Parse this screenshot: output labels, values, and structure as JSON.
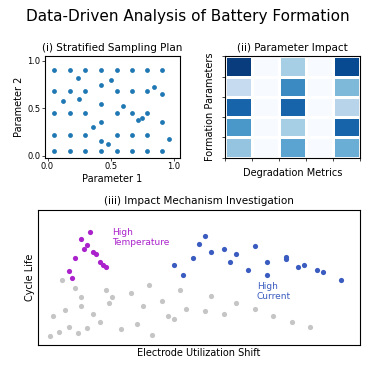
{
  "title": "Data-Driven Analysis of Battery Formation",
  "chart_data": [
    {
      "type": "scatter",
      "title": "(i) Stratified Sampling Plan",
      "x_label": "Parameter 1",
      "y_label": "Parameter 2",
      "x": [
        0.05,
        0.05,
        0.05,
        0.05,
        0.05,
        0.18,
        0.18,
        0.18,
        0.18,
        0.18,
        0.3,
        0.3,
        0.3,
        0.3,
        0.3,
        0.42,
        0.42,
        0.42,
        0.42,
        0.42,
        0.42,
        0.55,
        0.55,
        0.55,
        0.55,
        0.55,
        0.67,
        0.67,
        0.67,
        0.67,
        0.67,
        0.79,
        0.79,
        0.79,
        0.79,
        0.79,
        0.91,
        0.91,
        0.91,
        0.91,
        0.12,
        0.24,
        0.36,
        0.48,
        0.6,
        0.72,
        0.84,
        0.96,
        0.25,
        0.5,
        0.75
      ],
      "values": [
        0.05,
        0.22,
        0.45,
        0.68,
        0.9,
        0.05,
        0.22,
        0.45,
        0.68,
        0.9,
        0.05,
        0.22,
        0.45,
        0.68,
        0.9,
        0.05,
        0.15,
        0.35,
        0.55,
        0.75,
        0.9,
        0.05,
        0.22,
        0.45,
        0.68,
        0.9,
        0.05,
        0.22,
        0.45,
        0.68,
        0.9,
        0.05,
        0.22,
        0.45,
        0.68,
        0.9,
        0.05,
        0.35,
        0.65,
        0.9,
        0.58,
        0.82,
        0.3,
        0.12,
        0.52,
        0.38,
        0.72,
        0.18,
        0.6,
        0.8,
        0.4
      ],
      "xlim": [
        -0.02,
        1.05
      ],
      "ylim": [
        -0.02,
        1.05
      ],
      "xticks": [
        0.0,
        0.5,
        1.0
      ],
      "yticks": [
        0.0,
        0.5,
        1.0
      ]
    },
    {
      "type": "heatmap",
      "title": "(ii) Parameter Impact",
      "x_label": "Degradation Metrics",
      "y_label": "Formation Parameters",
      "cells": [
        [
          0.95,
          0.0,
          0.35,
          0.0,
          0.9
        ],
        [
          0.25,
          0.0,
          0.65,
          0.0,
          0.45
        ],
        [
          0.8,
          0.0,
          0.8,
          0.0,
          0.3
        ],
        [
          0.6,
          0.0,
          0.35,
          0.0,
          0.8
        ],
        [
          0.4,
          0.0,
          0.55,
          0.0,
          0.5
        ]
      ],
      "vlim": [
        0,
        1
      ],
      "tick_labels": false
    },
    {
      "type": "scatter",
      "title": "(iii) Impact Mechanism Investigation",
      "x_label": "Electrode Utilization Shift",
      "y_label": "Cycle Life",
      "series": [
        {
          "color": "#c5c5c5",
          "x": [
            0.02,
            0.05,
            0.08,
            0.11,
            0.14,
            0.18,
            0.03,
            0.07,
            0.12,
            0.16,
            0.21,
            0.25,
            0.3,
            0.35,
            0.4,
            0.12,
            0.2,
            0.28,
            0.38,
            0.46,
            0.52,
            0.58,
            0.34,
            0.44,
            0.54,
            0.62,
            0.68,
            0.74,
            0.8,
            0.86,
            0.06,
            0.1,
            0.22,
            0.32,
            0.42
          ],
          "values": [
            0.05,
            0.08,
            0.12,
            0.07,
            0.11,
            0.16,
            0.2,
            0.25,
            0.28,
            0.22,
            0.3,
            0.1,
            0.14,
            0.06,
            0.2,
            0.35,
            0.4,
            0.38,
            0.32,
            0.26,
            0.24,
            0.22,
            0.44,
            0.4,
            0.36,
            0.3,
            0.26,
            0.2,
            0.16,
            0.12,
            0.48,
            0.42,
            0.35,
            0.28,
            0.18
          ]
        },
        {
          "color": "#aa22cc",
          "x": [
            0.08,
            0.1,
            0.13,
            0.16,
            0.18,
            0.2,
            0.12,
            0.14,
            0.17,
            0.19,
            0.09,
            0.15
          ],
          "values": [
            0.55,
            0.65,
            0.72,
            0.7,
            0.62,
            0.58,
            0.8,
            0.75,
            0.68,
            0.6,
            0.5,
            0.85
          ]
        },
        {
          "color": "#3a5bbf",
          "x": [
            0.42,
            0.48,
            0.54,
            0.6,
            0.66,
            0.72,
            0.78,
            0.84,
            0.9,
            0.96,
            0.5,
            0.58,
            0.68,
            0.78,
            0.88,
            0.45,
            0.62,
            0.72,
            0.82,
            0.52
          ],
          "values": [
            0.6,
            0.65,
            0.7,
            0.62,
            0.56,
            0.52,
            0.66,
            0.6,
            0.54,
            0.48,
            0.76,
            0.72,
            0.74,
            0.64,
            0.56,
            0.52,
            0.68,
            0.62,
            0.58,
            0.82
          ]
        }
      ],
      "annotations": [
        {
          "text": "High\nTemperature",
          "color": "#aa22cc"
        },
        {
          "text": "High\nCurrent",
          "color": "#3a5bbf"
        }
      ],
      "xlim": [
        -0.02,
        1.02
      ],
      "ylim": [
        -0.02,
        1.02
      ],
      "tick_labels": false
    }
  ]
}
